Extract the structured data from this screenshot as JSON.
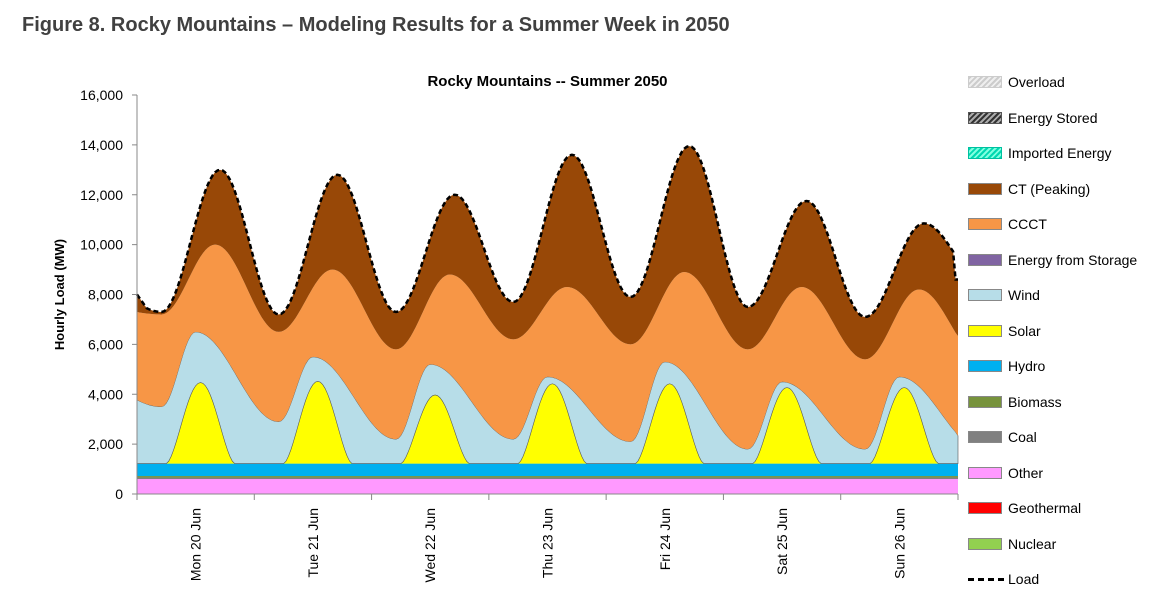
{
  "figure_title": "Figure 8. Rocky Mountains – Modeling Results for a Summer Week in 2050",
  "chart_data": {
    "type": "area",
    "title": "Rocky Mountains -- Summer 2050",
    "ylabel": "Hourly Load (MW)",
    "xlabel": "",
    "ylim": [
      0,
      16000
    ],
    "yticks": [
      0,
      2000,
      4000,
      6000,
      8000,
      10000,
      12000,
      14000,
      16000
    ],
    "ytick_labels": [
      "0",
      "2,000",
      "4,000",
      "6,000",
      "8,000",
      "10,000",
      "12,000",
      "14,000",
      "16,000"
    ],
    "days": [
      "Mon 20 Jun",
      "Tue 21 Jun",
      "Wed 22 Jun",
      "Thu 23 Jun",
      "Fri 24 Jun",
      "Sat 25 Jun",
      "Sun 26 Jun"
    ],
    "hours_per_day": 24,
    "legend_order": [
      "Overload",
      "Energy Stored",
      "Imported Energy",
      "CT (Peaking)",
      "CCCT",
      "Energy from Storage",
      "Wind",
      "Solar",
      "Hydro",
      "Biomass",
      "Coal",
      "Other",
      "Geothermal",
      "Nuclear",
      "Load"
    ],
    "series": [
      {
        "name": "Other",
        "color": "#FF99FF",
        "values": "constant 600"
      },
      {
        "name": "Coal",
        "color": "#808080",
        "values": "constant 60"
      },
      {
        "name": "Biomass",
        "color": "#77933C",
        "values": "constant 60"
      },
      {
        "name": "Hydro",
        "color": "#00B0F0",
        "values": "constant 500"
      },
      {
        "name": "Solar",
        "color": "#FFFF00",
        "daily_peak": [
          3250,
          3300,
          2750,
          3200,
          3200,
          3050,
          3050
        ]
      },
      {
        "name": "Wind",
        "color": "#B7DDE8",
        "notes": "stacked to solar+wind curve"
      },
      {
        "name": "CCCT",
        "color": "#F79646"
      },
      {
        "name": "CT (Peaking)",
        "color": "#984807"
      },
      {
        "name": "Load",
        "color": "#000000",
        "style": "dashed"
      }
    ],
    "load_daily": {
      "min": [
        7300,
        7200,
        7300,
        7700,
        7900,
        7500,
        7100
      ],
      "peak": [
        13000,
        12800,
        12000,
        13600,
        13950,
        11750,
        10850
      ],
      "start": 8000,
      "end": 8600
    },
    "ccct_top_daily_peak": [
      10000,
      9000,
      8800,
      8300,
      8900,
      8300,
      8200
    ],
    "ccct_top_daily_min": [
      7200,
      6500,
      5800,
      6200,
      6000,
      5800,
      5400
    ],
    "wind_top_daily_peak": [
      6500,
      5500,
      5200,
      4700,
      5300,
      4500,
      4700
    ],
    "wind_top_daily_min": [
      3500,
      2900,
      2200,
      2200,
      2100,
      1800,
      1800
    ]
  }
}
